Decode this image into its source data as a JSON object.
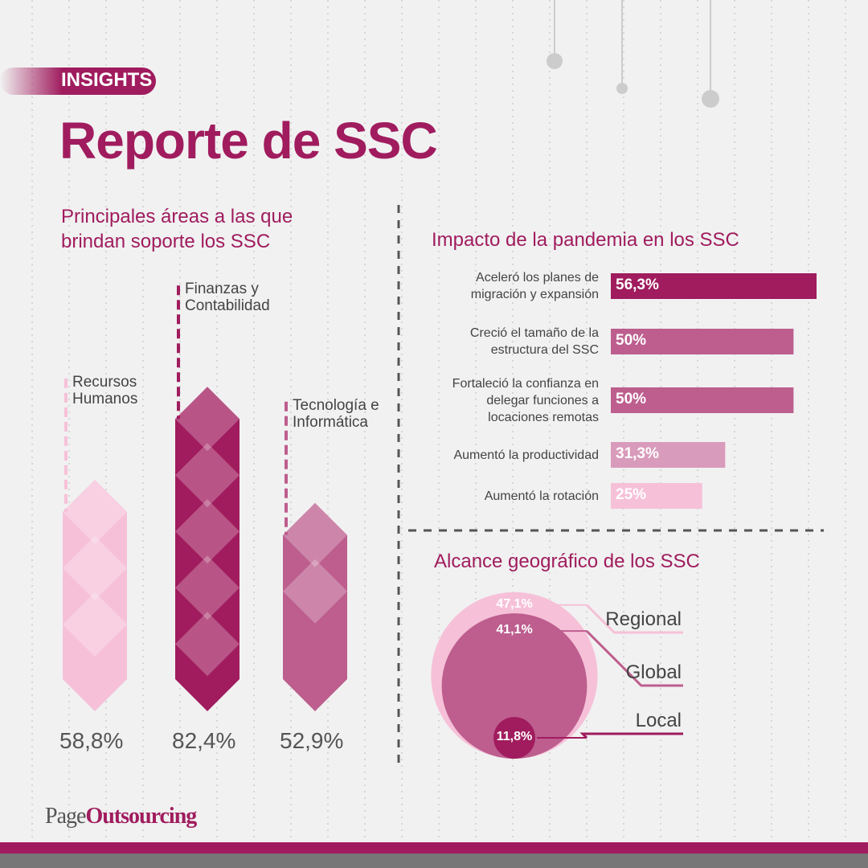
{
  "badge": "INSIGHTS",
  "title": "Reporte de SSC",
  "logo": {
    "page": "Page",
    "outsourcing": "Outsourcing"
  },
  "chart_data": [
    {
      "type": "column",
      "title": "Principales áreas a las que brindan soporte los SSC",
      "categories": [
        "Recursos Humanos",
        "Finanzas y Contabilidad",
        "Tecnología e Informática"
      ],
      "values": [
        58.8,
        82.4,
        52.9
      ],
      "value_labels": [
        "58,8%",
        "82,4%",
        "52,9%"
      ],
      "colors": [
        "#f6c1d8",
        "#a01c5e",
        "#bd5e8e"
      ]
    },
    {
      "type": "bar",
      "title": "Impacto de la pandemia en los SSC",
      "categories": [
        "Aceleró los planes de migración y expansión",
        "Creció el tamaño de la estructura del SSC",
        "Fortaleció la confianza en delegar funciones a locaciones remotas",
        "Aumentó la productividad",
        "Aumentó la rotación"
      ],
      "values": [
        56.3,
        50,
        50,
        31.3,
        25
      ],
      "value_labels": [
        "56,3%",
        "50%",
        "50%",
        "31,3%",
        "25%"
      ],
      "colors": [
        "#a01c5e",
        "#bd5e8e",
        "#bd5e8e",
        "#d99bbb",
        "#f6c1d8"
      ]
    },
    {
      "type": "bubble",
      "title": "Alcance geográfico de los SSC",
      "categories": [
        "Regional",
        "Global",
        "Local"
      ],
      "values": [
        47.1,
        41.1,
        11.8
      ],
      "value_labels": [
        "47,1%",
        "41,1%",
        "11,8%"
      ],
      "colors": [
        "#f6c1d8",
        "#bd5e8e",
        "#a01c5e"
      ]
    }
  ]
}
